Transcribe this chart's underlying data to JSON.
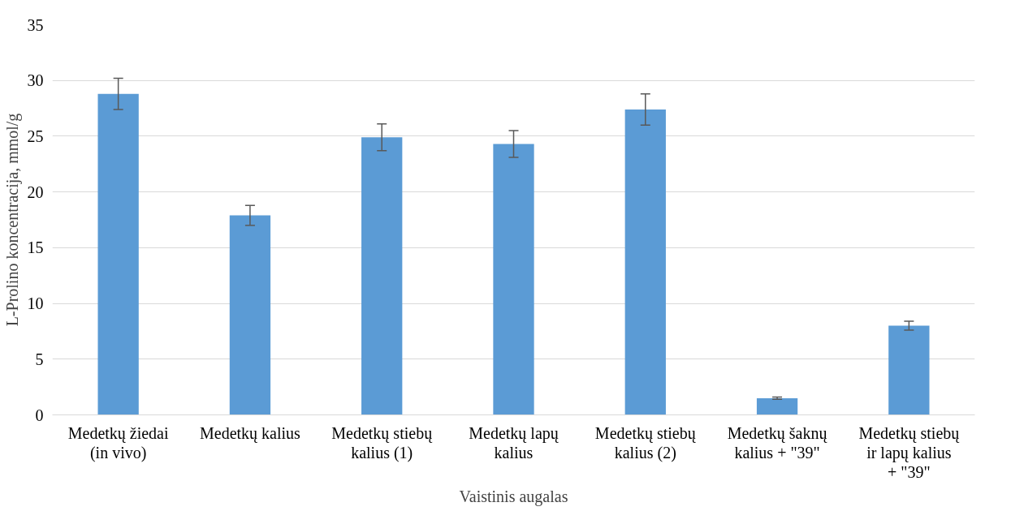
{
  "chart_data": {
    "type": "bar",
    "xlabel": "Vaistinis augalas",
    "ylabel": "L-Prolino koncentracija, mmol/g",
    "categories": [
      "Medetkų žiedai (in vivo)",
      "Medetkų kalius",
      "Medetkų stiebų kalius (1)",
      "Medetkų lapų kalius",
      "Medetkų stiebų kalius (2)",
      "Medetkų šaknų kalius + \"39\"",
      "Medetkų stiebų ir lapų kalius + \"39\""
    ],
    "values": [
      28.8,
      17.9,
      24.9,
      24.3,
      27.4,
      1.5,
      8.0
    ],
    "errors": [
      1.4,
      0.9,
      1.2,
      1.2,
      1.4,
      0.1,
      0.4
    ],
    "color": "#5b9bd5",
    "ylim": [
      0,
      35
    ],
    "yticks": [
      0,
      5,
      10,
      15,
      20,
      25,
      30,
      35
    ],
    "grid": "y"
  }
}
